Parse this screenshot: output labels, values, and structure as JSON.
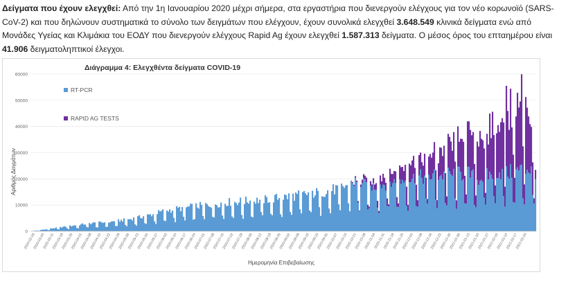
{
  "paragraph": {
    "heading": "Δείγματα που έχουν ελεγχθεί:",
    "part1": " Από την 1η Ιανουαρίου 2020 μέχρι σήμερα, στα εργαστήρια που διενεργούν ελέγχους για τον νέο κορωνοϊό (SARS-CoV-2) και που δηλώνουν συστηματικά το σύνολο των δειγμάτων που ελέγχουν, έχουν συνολικά ελεγχθεί ",
    "bold1": "3.648.549",
    "part2": " κλινικά δείγματα ενώ από Μονάδες Υγείας και Κλιμάκια του ΕΟΔΥ που διενεργούν ελέγχους Rapid Ag έχουν ελεγχθεί ",
    "bold2": "1.587.313",
    "part3": " δείγματα. Ο μέσος όρος του επταημέρου είναι ",
    "bold3": "41.906",
    "part4": " δειγματοληπτικοί έλεγχοι."
  },
  "chart_data": {
    "type": "bar",
    "stacked": true,
    "title": "Διάγραμμα 4: Ελεγχθέντα δείγματα COVID-19",
    "xlabel": "Ημερομηνία Επιβεβαίωσης",
    "ylabel": "Αριθμός Δειγμάτων",
    "ylim": [
      0,
      60000
    ],
    "yticks": [
      0,
      10000,
      20000,
      30000,
      40000,
      50000,
      60000
    ],
    "grid": true,
    "legend_position": "left",
    "colors": {
      "rt_pcr": "#5b9bd5",
      "rapid": "#7030a0",
      "grid": "#e4e4e4"
    },
    "x_tick_labels": [
      "2020-02-26",
      "2020-03-04",
      "2020-03-11",
      "2020-03-18",
      "2020-03-25",
      "2020-04-01",
      "2020-04-08",
      "2020-04-15",
      "2020-04-22",
      "2020-04-29",
      "2020-05-06",
      "2020-05-13",
      "2020-05-20",
      "2020-05-27",
      "2020-06-03",
      "2020-06-10",
      "2020-06-17",
      "2020-06-24",
      "2020-07-01",
      "2020-07-08",
      "2020-07-15",
      "2020-07-22",
      "2020-07-29",
      "2020-08-05",
      "2020-08-12",
      "2020-08-19",
      "2020-08-26",
      "2020-09-02",
      "2020-09-09",
      "2020-09-16",
      "2020-09-23",
      "2020-09-30",
      "2020-10-07",
      "2020-10-14",
      "2020-10-21",
      "2020-10-28",
      "2020-11-04",
      "2020-11-11",
      "2020-11-18",
      "2020-11-25",
      "2020-12-02",
      "2020-12-09",
      "2020-12-16",
      "2020-12-23",
      "2020-12-30",
      "2021-01-06",
      "2021-01-13",
      "2021-01-20",
      "2021-01-27",
      "2021-02-03",
      "2021-02-10",
      "2021-02-17",
      "2021-02-24"
    ],
    "series": [
      {
        "name": "RT-PCR",
        "key": "rt_pcr",
        "anchors": [
          [
            0,
            0
          ],
          [
            14,
            1000
          ],
          [
            28,
            2000
          ],
          [
            42,
            3000
          ],
          [
            56,
            3500
          ],
          [
            70,
            4500
          ],
          [
            84,
            6000
          ],
          [
            98,
            8000
          ],
          [
            112,
            9000
          ],
          [
            126,
            10000
          ],
          [
            140,
            11000
          ],
          [
            154,
            11500
          ],
          [
            168,
            12000
          ],
          [
            182,
            13000
          ],
          [
            196,
            14000
          ],
          [
            210,
            15000
          ],
          [
            224,
            16500
          ],
          [
            232,
            19000
          ],
          [
            245,
            17000
          ],
          [
            259,
            18500
          ],
          [
            273,
            20000
          ],
          [
            287,
            21000
          ],
          [
            301,
            21500
          ],
          [
            315,
            22000
          ],
          [
            322,
            20000
          ],
          [
            329,
            21000
          ],
          [
            336,
            23000
          ],
          [
            343,
            22000
          ],
          [
            350,
            23000
          ],
          [
            357,
            24000
          ],
          [
            364,
            23000
          ]
        ]
      },
      {
        "name": "RAPID AG TESTS",
        "key": "rapid",
        "anchors": [
          [
            0,
            0
          ],
          [
            230,
            0
          ],
          [
            245,
            2000
          ],
          [
            259,
            4000
          ],
          [
            273,
            6000
          ],
          [
            287,
            8000
          ],
          [
            301,
            10000
          ],
          [
            315,
            14000
          ],
          [
            329,
            18000
          ],
          [
            343,
            24000
          ],
          [
            350,
            26000
          ],
          [
            357,
            28000
          ],
          [
            364,
            3000
          ]
        ]
      }
    ]
  }
}
